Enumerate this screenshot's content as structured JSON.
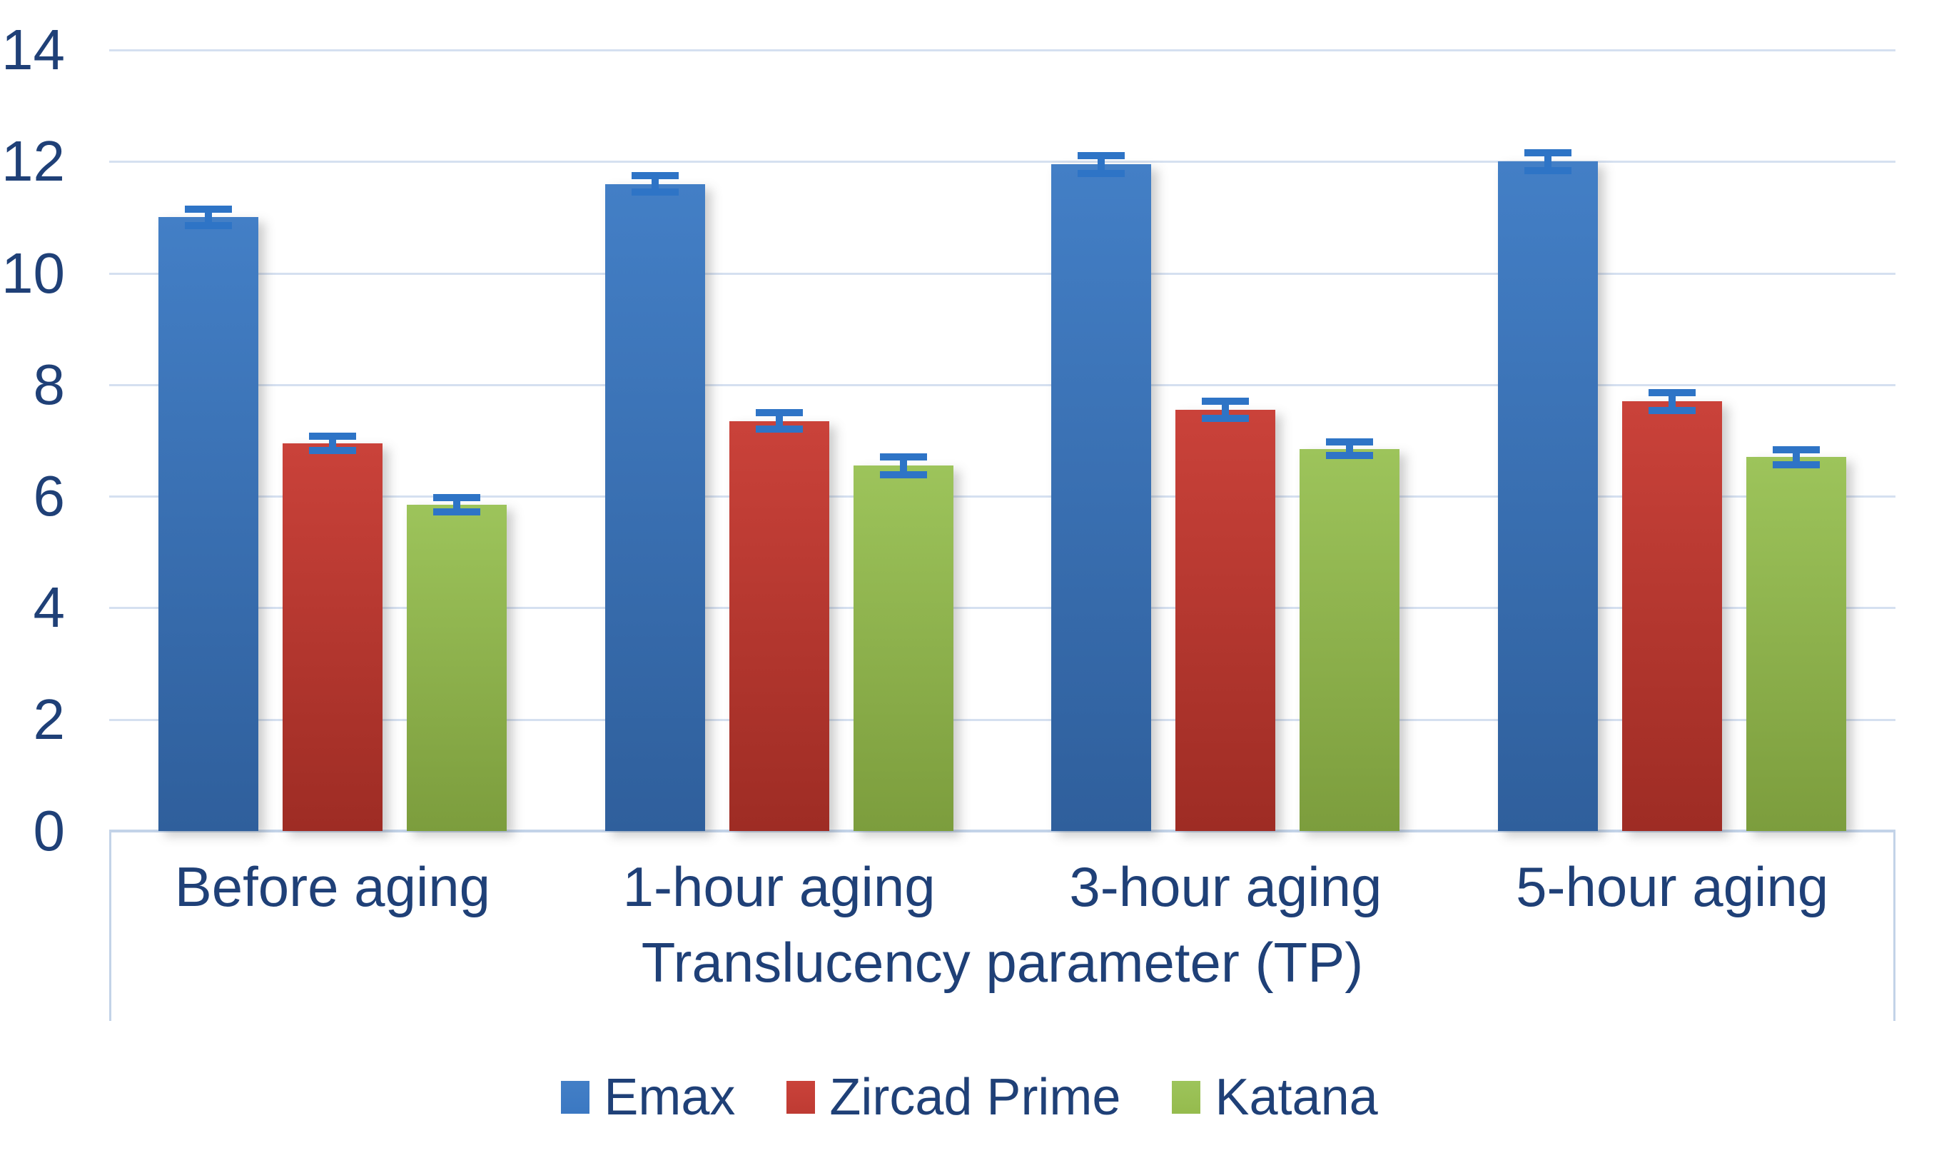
{
  "chart_data": {
    "type": "bar",
    "categories": [
      "Before aging",
      "1-hour aging",
      "3-hour aging",
      "5-hour aging"
    ],
    "series": [
      {
        "name": "Emax",
        "values": [
          11.0,
          11.6,
          11.95,
          12.0
        ],
        "errors": [
          0.15,
          0.15,
          0.16,
          0.16
        ],
        "color_top": "#437FC6",
        "color_bottom": "#2F5F9C",
        "legend_color": "#3B78C2"
      },
      {
        "name": "Zircad Prime",
        "values": [
          6.95,
          7.35,
          7.55,
          7.7
        ],
        "errors": [
          0.13,
          0.15,
          0.15,
          0.16
        ],
        "color_top": "#CA423A",
        "color_bottom": "#9E2C24",
        "legend_color": "#BE3B33"
      },
      {
        "name": "Katana",
        "values": [
          5.85,
          6.55,
          6.85,
          6.7
        ],
        "errors": [
          0.13,
          0.16,
          0.12,
          0.13
        ],
        "color_top": "#9DC45B",
        "color_bottom": "#7C9D3D",
        "legend_color": "#95BB4D"
      }
    ],
    "title": "",
    "xlabel": "Translucency parameter (TP)",
    "ylabel": "",
    "ylim": [
      0,
      14
    ],
    "ytick_step": 2,
    "ytick_labels": [
      "0",
      "2",
      "4",
      "6",
      "8",
      "10",
      "12",
      "14"
    ],
    "grid": true,
    "legend_position": "bottom",
    "error_bars": true
  },
  "colors": {
    "text": "#1F4077",
    "gridline": "#D5E0F0",
    "axis_line": "#C3D3E8",
    "error_bar": "#2E74C6",
    "background": "#FFFFFF"
  },
  "axis": {
    "x_title": "Translucency parameter (TP)"
  }
}
